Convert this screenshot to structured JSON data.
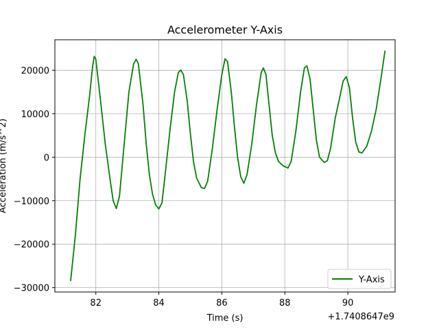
{
  "chart_data": {
    "type": "line",
    "title": "Accelerometer Y-Axis",
    "xlabel": "Time (s)",
    "ylabel": "Acceleration (m/s^2)",
    "x_offset_label": "+1.7408647e9",
    "xlim": [
      80.7,
      91.5
    ],
    "ylim": [
      -31000,
      27000
    ],
    "xticks": [
      82,
      84,
      86,
      88,
      90
    ],
    "yticks": [
      -30000,
      -20000,
      -10000,
      0,
      10000,
      20000
    ],
    "ytick_labels": [
      "−30000",
      "−20000",
      "−10000",
      "0",
      "10000",
      "20000"
    ],
    "grid": true,
    "legend_position": "lower-right",
    "series": [
      {
        "name": "Y-Axis",
        "color": "#008000",
        "points": [
          [
            81.2,
            -28500
          ],
          [
            81.35,
            -18000
          ],
          [
            81.5,
            -5000
          ],
          [
            81.65,
            5000
          ],
          [
            81.8,
            14000
          ],
          [
            81.9,
            21000
          ],
          [
            81.95,
            23200
          ],
          [
            82.0,
            22500
          ],
          [
            82.15,
            13000
          ],
          [
            82.3,
            3000
          ],
          [
            82.45,
            -5000
          ],
          [
            82.55,
            -10000
          ],
          [
            82.65,
            -11800
          ],
          [
            82.75,
            -9000
          ],
          [
            82.9,
            3000
          ],
          [
            83.05,
            15000
          ],
          [
            83.2,
            21500
          ],
          [
            83.28,
            22500
          ],
          [
            83.35,
            21500
          ],
          [
            83.5,
            12000
          ],
          [
            83.6,
            3000
          ],
          [
            83.7,
            -4000
          ],
          [
            83.8,
            -8500
          ],
          [
            83.9,
            -11000
          ],
          [
            84.0,
            -11900
          ],
          [
            84.1,
            -10500
          ],
          [
            84.2,
            -4000
          ],
          [
            84.35,
            6000
          ],
          [
            84.5,
            15000
          ],
          [
            84.62,
            19500
          ],
          [
            84.7,
            20000
          ],
          [
            84.78,
            19000
          ],
          [
            84.9,
            13000
          ],
          [
            85.0,
            5500
          ],
          [
            85.1,
            -1000
          ],
          [
            85.2,
            -4800
          ],
          [
            85.35,
            -7000
          ],
          [
            85.45,
            -7200
          ],
          [
            85.55,
            -5500
          ],
          [
            85.7,
            2000
          ],
          [
            85.85,
            11000
          ],
          [
            86.0,
            19000
          ],
          [
            86.1,
            22600
          ],
          [
            86.18,
            22000
          ],
          [
            86.3,
            15000
          ],
          [
            86.4,
            7000
          ],
          [
            86.5,
            0
          ],
          [
            86.6,
            -4500
          ],
          [
            86.7,
            -6000
          ],
          [
            86.8,
            -4000
          ],
          [
            86.95,
            3000
          ],
          [
            87.1,
            12000
          ],
          [
            87.25,
            19500
          ],
          [
            87.32,
            20500
          ],
          [
            87.4,
            19000
          ],
          [
            87.5,
            12000
          ],
          [
            87.6,
            5000
          ],
          [
            87.7,
            1000
          ],
          [
            87.8,
            -1000
          ],
          [
            87.95,
            -2000
          ],
          [
            88.1,
            -2500
          ],
          [
            88.2,
            -1000
          ],
          [
            88.35,
            6000
          ],
          [
            88.5,
            15000
          ],
          [
            88.62,
            20500
          ],
          [
            88.7,
            21000
          ],
          [
            88.8,
            18000
          ],
          [
            88.9,
            11000
          ],
          [
            89.0,
            4000
          ],
          [
            89.1,
            0
          ],
          [
            89.25,
            -1200
          ],
          [
            89.35,
            -800
          ],
          [
            89.45,
            2000
          ],
          [
            89.6,
            9000
          ],
          [
            89.75,
            14000
          ],
          [
            89.85,
            17500
          ],
          [
            89.95,
            18500
          ],
          [
            90.05,
            16000
          ],
          [
            90.15,
            9000
          ],
          [
            90.25,
            3500
          ],
          [
            90.35,
            1200
          ],
          [
            90.45,
            1000
          ],
          [
            90.6,
            2500
          ],
          [
            90.75,
            6000
          ],
          [
            90.9,
            11000
          ],
          [
            91.05,
            18000
          ],
          [
            91.18,
            24500
          ]
        ]
      }
    ]
  }
}
